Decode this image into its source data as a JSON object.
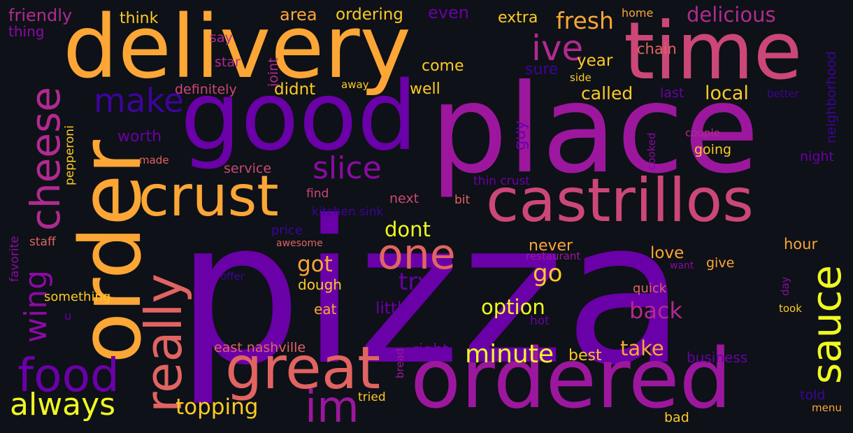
{
  "wordcloud": {
    "background": "#0e1117",
    "palette": "plasma",
    "words": [
      {
        "text": "pizza",
        "color": "#6a00a8"
      },
      {
        "text": "place",
        "color": "#9c179e"
      },
      {
        "text": "delivery",
        "color": "#fca636"
      },
      {
        "text": "time",
        "color": "#cc4778"
      },
      {
        "text": "good",
        "color": "#6a00a8"
      },
      {
        "text": "order",
        "color": "#fca636"
      },
      {
        "text": "ordered",
        "color": "#9c179e"
      },
      {
        "text": "castrillos",
        "color": "#cc4778"
      },
      {
        "text": "crust",
        "color": "#fca636"
      },
      {
        "text": "great",
        "color": "#e16462"
      },
      {
        "text": "cheese",
        "color": "#b12a90"
      },
      {
        "text": "really",
        "color": "#e16462"
      },
      {
        "text": "food",
        "color": "#6a00a8"
      },
      {
        "text": "sauce",
        "color": "#f0f921"
      },
      {
        "text": "one",
        "color": "#e16462"
      },
      {
        "text": "im",
        "color": "#9c179e"
      },
      {
        "text": "always",
        "color": "#f0f921"
      },
      {
        "text": "make",
        "color": "#3d049b"
      },
      {
        "text": "slice",
        "color": "#8b0aa5"
      },
      {
        "text": "wing",
        "color": "#8b0aa5"
      },
      {
        "text": "ive",
        "color": "#b12a90"
      },
      {
        "text": "minute",
        "color": "#f0f921"
      },
      {
        "text": "topping",
        "color": "#fdca26"
      },
      {
        "text": "fresh",
        "color": "#fca636"
      },
      {
        "text": "delicious",
        "color": "#b12a90"
      },
      {
        "text": "option",
        "color": "#f0f921"
      },
      {
        "text": "take",
        "color": "#fca636"
      },
      {
        "text": "back",
        "color": "#b12a90"
      },
      {
        "text": "go",
        "color": "#fdca26"
      },
      {
        "text": "try",
        "color": "#6a00a8"
      },
      {
        "text": "got",
        "color": "#fca636"
      },
      {
        "text": "dont",
        "color": "#f0f921"
      },
      {
        "text": "called",
        "color": "#fdca26"
      },
      {
        "text": "local",
        "color": "#fdca26"
      },
      {
        "text": "area",
        "color": "#fca636"
      },
      {
        "text": "ordering",
        "color": "#fdca26"
      },
      {
        "text": "even",
        "color": "#6a00a8"
      },
      {
        "text": "extra",
        "color": "#fdca26"
      },
      {
        "text": "friendly",
        "color": "#b12a90"
      },
      {
        "text": "think",
        "color": "#fdca26"
      },
      {
        "text": "thing",
        "color": "#8b0aa5"
      },
      {
        "text": "home",
        "color": "#fca636"
      },
      {
        "text": "chain",
        "color": "#e16462"
      },
      {
        "text": "neighborhood",
        "color": "#3d049b"
      },
      {
        "text": "say",
        "color": "#b12a90"
      },
      {
        "text": "joint",
        "color": "#b12a90"
      },
      {
        "text": "star",
        "color": "#b12a90"
      },
      {
        "text": "year",
        "color": "#fdca26"
      },
      {
        "text": "come",
        "color": "#fdca26"
      },
      {
        "text": "sure",
        "color": "#3d049b"
      },
      {
        "text": "side",
        "color": "#fdca26"
      },
      {
        "text": "away",
        "color": "#fdca26"
      },
      {
        "text": "well",
        "color": "#fdca26"
      },
      {
        "text": "didnt",
        "color": "#fdca26"
      },
      {
        "text": "definitely",
        "color": "#cc4778"
      },
      {
        "text": "last",
        "color": "#6a00a8"
      },
      {
        "text": "better",
        "color": "#3d049b"
      },
      {
        "text": "pepperoni",
        "color": "#fdca26"
      },
      {
        "text": "worth",
        "color": "#6a00a8"
      },
      {
        "text": "made",
        "color": "#e16462"
      },
      {
        "text": "guy",
        "color": "#6a00a8"
      },
      {
        "text": "cooked",
        "color": "#8b0aa5"
      },
      {
        "text": "couple",
        "color": "#b12a90"
      },
      {
        "text": "going",
        "color": "#fdca26"
      },
      {
        "text": "night",
        "color": "#6a00a8"
      },
      {
        "text": "service",
        "color": "#cc4778"
      },
      {
        "text": "thin crust",
        "color": "#6a00a8"
      },
      {
        "text": "find",
        "color": "#cc4778"
      },
      {
        "text": "bit",
        "color": "#e16462"
      },
      {
        "text": "next",
        "color": "#cc4778"
      },
      {
        "text": "kitchen sink",
        "color": "#3d049b"
      },
      {
        "text": "price",
        "color": "#3d049b"
      },
      {
        "text": "staff",
        "color": "#e16462"
      },
      {
        "text": "favorite",
        "color": "#8b0aa5"
      },
      {
        "text": "awesome",
        "color": "#e16462"
      },
      {
        "text": "never",
        "color": "#fca636"
      },
      {
        "text": "love",
        "color": "#fca636"
      },
      {
        "text": "hour",
        "color": "#fca636"
      },
      {
        "text": "restaurant",
        "color": "#9c179e"
      },
      {
        "text": "want",
        "color": "#8b0aa5"
      },
      {
        "text": "give",
        "color": "#fca636"
      },
      {
        "text": "offer",
        "color": "#3d049b"
      },
      {
        "text": "dough",
        "color": "#fdca26"
      },
      {
        "text": "quick",
        "color": "#e16462"
      },
      {
        "text": "something",
        "color": "#fdca26"
      },
      {
        "text": "eat",
        "color": "#fca636"
      },
      {
        "text": "little",
        "color": "#6a00a8"
      },
      {
        "text": "day",
        "color": "#8b0aa5"
      },
      {
        "text": "took",
        "color": "#fdca26"
      },
      {
        "text": "u",
        "color": "#6a00a8"
      },
      {
        "text": "hot",
        "color": "#6a00a8"
      },
      {
        "text": "east nashville",
        "color": "#e16462"
      },
      {
        "text": "bread",
        "color": "#9c179e"
      },
      {
        "text": "right",
        "color": "#6a00a8"
      },
      {
        "text": "best",
        "color": "#fdca26"
      },
      {
        "text": "business",
        "color": "#6a00a8"
      },
      {
        "text": "told",
        "color": "#3d049b"
      },
      {
        "text": "tried",
        "color": "#fdca26"
      },
      {
        "text": "bad",
        "color": "#fdca26"
      },
      {
        "text": "menu",
        "color": "#fca636"
      }
    ]
  }
}
